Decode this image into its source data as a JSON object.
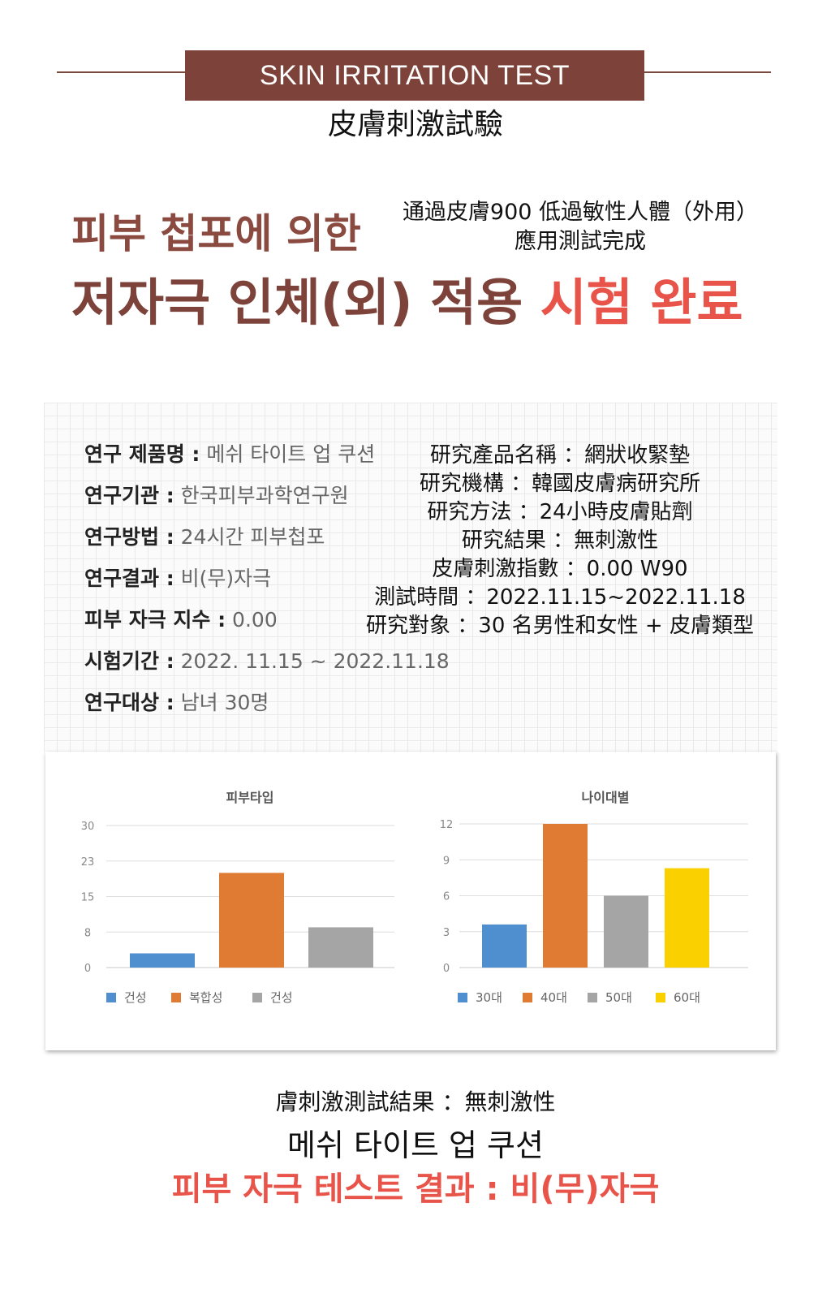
{
  "header": {
    "banner": "SKIN IRRITATION TEST",
    "subtitle": "皮膚刺激試驗"
  },
  "headline": {
    "line1": "피부 첩포에 의한",
    "line2_main": "저자극 인체(외) 적용",
    "line2_accent": "시험 완료",
    "cn_line1": "通過皮膚900 低過敏性人體（外用）",
    "cn_line2": "應用測試完成"
  },
  "colors": {
    "brown": "#7d433a",
    "accent_red": "#e8544a",
    "blue": "#4f8fd0",
    "orange": "#e07b33",
    "gray": "#a5a5a5",
    "yellow": "#fbd000"
  },
  "kr_info": [
    {
      "key": "연구 제품명 :",
      "value": " 메쉬 타이트 업 쿠션"
    },
    {
      "key": "연구기관 :",
      "value": " 한국피부과학연구원"
    },
    {
      "key": "연구방법 :",
      "value": " 24시간 피부첩포"
    },
    {
      "key": "연구결과 :",
      "value": " 비(무)자극"
    },
    {
      "key": "피부 자극 지수 :",
      "value": " 0.00"
    },
    {
      "key": "시험기간 :",
      "value": " 2022. 11.15 ~ 2022.11.18"
    },
    {
      "key": "연구대상 :",
      "value": " 남녀 30명"
    }
  ],
  "cn_info": [
    "研究產品名稱 ：網狀收緊墊",
    "研究機構 ：韓國皮膚病研究所",
    "研究方法 ：24小時皮膚貼劑",
    "研究結果 ：無刺激性",
    "皮膚刺激指數 ：0.00 W90",
    "測試時間 ：2022.11.15~2022.11.18",
    "研究對象 ：30 名男性和女性 + 皮膚類型"
  ],
  "chart_data": [
    {
      "type": "bar",
      "title": "피부타입",
      "categories": [
        "건성",
        "복합성",
        "건성"
      ],
      "values": [
        3,
        20,
        8.5
      ],
      "colors": [
        "#4f8fd0",
        "#e07b33",
        "#a5a5a5"
      ],
      "yticks": [
        "0",
        "8",
        "15",
        "23",
        "30"
      ],
      "ylim": [
        0,
        30
      ],
      "grid": true,
      "legend": "bottom"
    },
    {
      "type": "bar",
      "title": "나이대별",
      "categories": [
        "30대",
        "40대",
        "50대",
        "60대"
      ],
      "values": [
        3.6,
        12,
        6,
        8.3
      ],
      "colors": [
        "#4f8fd0",
        "#e07b33",
        "#a5a5a5",
        "#fbd000"
      ],
      "yticks": [
        "0",
        "3",
        "6",
        "9",
        "12"
      ],
      "ylim": [
        0,
        12
      ],
      "grid": true,
      "legend": "bottom"
    }
  ],
  "footer": {
    "line1": "膚刺激測試結果 ：無刺激性",
    "line2": "메쉬 타이트 업 쿠션",
    "line3": "피부 자극 테스트 결과 : 비(무)자극"
  }
}
